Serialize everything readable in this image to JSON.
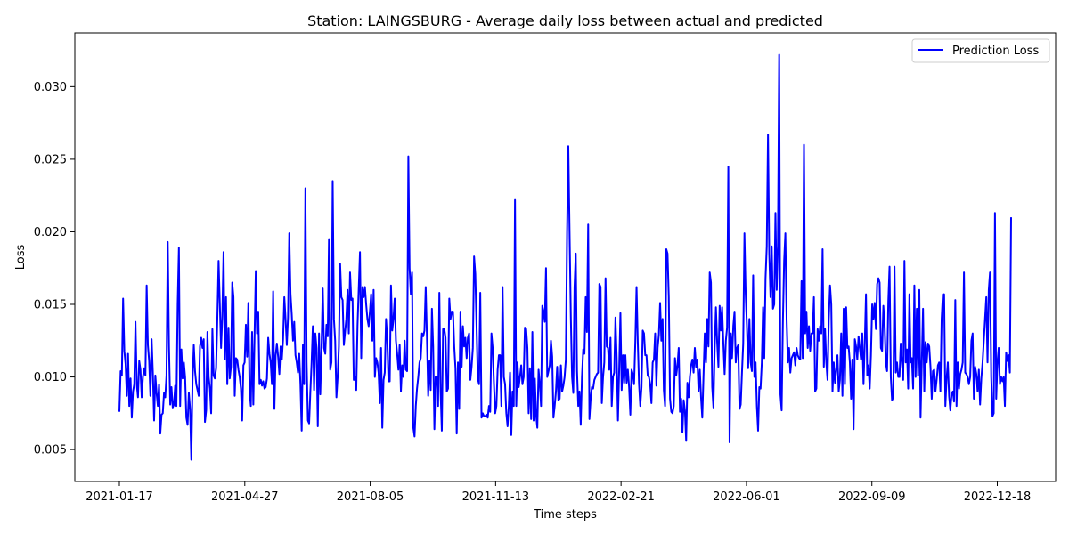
{
  "chart_data": {
    "type": "line",
    "title": "Station: LAINGSBURG - Average daily loss between actual and predicted",
    "xlabel": "Time steps",
    "ylabel": "Loss",
    "x_start": "2021-01-17",
    "x_end": "2022-12-29",
    "x_tick_labels": [
      "2021-01-17",
      "2021-04-27",
      "2021-08-05",
      "2021-11-13",
      "2022-02-21",
      "2022-06-01",
      "2022-09-09",
      "2022-12-18"
    ],
    "ylim": [
      0.0028,
      0.0337
    ],
    "y_ticks": [
      "0.005",
      "0.010",
      "0.015",
      "0.020",
      "0.025",
      "0.030"
    ],
    "legend": {
      "position": "top-right",
      "entries": [
        "Prediction Loss"
      ]
    },
    "series": [
      {
        "name": "Prediction Loss",
        "color": "#0000ff",
        "values": [
          0.0076,
          0.0104,
          0.0101,
          0.0154,
          0.0118,
          0.0109,
          0.0087,
          0.0116,
          0.008,
          0.0099,
          0.0072,
          0.009,
          0.0095,
          0.0138,
          0.0095,
          0.0086,
          0.0111,
          0.0105,
          0.0086,
          0.01,
          0.0106,
          0.0101,
          0.0163,
          0.0122,
          0.0111,
          0.0087,
          0.0126,
          0.0103,
          0.007,
          0.0101,
          0.0089,
          0.008,
          0.0095,
          0.0061,
          0.0074,
          0.0075,
          0.0089,
          0.0086,
          0.0101,
          0.0193,
          0.0121,
          0.0081,
          0.0093,
          0.0079,
          0.0081,
          0.0094,
          0.008,
          0.015,
          0.0189,
          0.008,
          0.0119,
          0.0099,
          0.011,
          0.01,
          0.0072,
          0.0067,
          0.0089,
          0.0078,
          0.0043,
          0.0098,
          0.0122,
          0.0104,
          0.0095,
          0.0091,
          0.0087,
          0.0121,
          0.0127,
          0.012,
          0.0126,
          0.0069,
          0.0077,
          0.0131,
          0.01,
          0.0092,
          0.0075,
          0.0133,
          0.0101,
          0.0099,
          0.0106,
          0.014,
          0.018,
          0.015,
          0.012,
          0.0142,
          0.0186,
          0.0112,
          0.0155,
          0.0095,
          0.0134,
          0.0099,
          0.0107,
          0.0165,
          0.0155,
          0.0087,
          0.0113,
          0.0112,
          0.0105,
          0.01,
          0.0092,
          0.007,
          0.0108,
          0.011,
          0.0136,
          0.0114,
          0.0151,
          0.009,
          0.008,
          0.0131,
          0.0081,
          0.0128,
          0.0173,
          0.013,
          0.0145,
          0.0095,
          0.0098,
          0.0094,
          0.0097,
          0.0092,
          0.0093,
          0.0099,
          0.0127,
          0.0116,
          0.011,
          0.0095,
          0.0159,
          0.0078,
          0.0115,
          0.0123,
          0.0114,
          0.0102,
          0.0121,
          0.0112,
          0.0126,
          0.0155,
          0.014,
          0.0122,
          0.0141,
          0.0199,
          0.0157,
          0.0143,
          0.0125,
          0.0138,
          0.0115,
          0.011,
          0.0103,
          0.0116,
          0.0095,
          0.0063,
          0.0122,
          0.0095,
          0.023,
          0.011,
          0.007,
          0.0068,
          0.009,
          0.011,
          0.0135,
          0.0091,
          0.013,
          0.012,
          0.0066,
          0.013,
          0.0088,
          0.012,
          0.0161,
          0.012,
          0.0116,
          0.0136,
          0.0128,
          0.0195,
          0.0105,
          0.011,
          0.0235,
          0.014,
          0.0125,
          0.0086,
          0.01,
          0.0121,
          0.0178,
          0.0155,
          0.0153,
          0.0122,
          0.0131,
          0.014,
          0.016,
          0.013,
          0.0172,
          0.0153,
          0.0154,
          0.0098,
          0.01,
          0.0091,
          0.0135,
          0.0161,
          0.0186,
          0.0113,
          0.0162,
          0.0155,
          0.0162,
          0.015,
          0.014,
          0.0135,
          0.0145,
          0.0157,
          0.0125,
          0.016,
          0.01,
          0.0113,
          0.011,
          0.0103,
          0.0082,
          0.012,
          0.0065,
          0.0098,
          0.0103,
          0.014,
          0.0127,
          0.0097,
          0.0097,
          0.0163,
          0.0132,
          0.014,
          0.0154,
          0.0125,
          0.0116,
          0.0105,
          0.0122,
          0.009,
          0.0108,
          0.01,
          0.0125,
          0.0105,
          0.0104,
          0.0252,
          0.0175,
          0.0157,
          0.0172,
          0.0065,
          0.0059,
          0.008,
          0.0092,
          0.01,
          0.011,
          0.0113,
          0.013,
          0.0128,
          0.0132,
          0.0162,
          0.0127,
          0.0087,
          0.0111,
          0.0091,
          0.0147,
          0.0121,
          0.0064,
          0.01,
          0.01,
          0.008,
          0.0158,
          0.009,
          0.0063,
          0.0133,
          0.0133,
          0.0127,
          0.009,
          0.0092,
          0.0154,
          0.014,
          0.0145,
          0.0145,
          0.0121,
          0.0106,
          0.0061,
          0.011,
          0.0078,
          0.0145,
          0.0107,
          0.0135,
          0.0121,
          0.0127,
          0.0113,
          0.0127,
          0.013,
          0.0098,
          0.0107,
          0.012,
          0.0183,
          0.0171,
          0.0135,
          0.0099,
          0.0095,
          0.0158,
          0.0072,
          0.0075,
          0.0073,
          0.0073,
          0.0074,
          0.0072,
          0.008,
          0.0076,
          0.013,
          0.012,
          0.0096,
          0.0075,
          0.008,
          0.0105,
          0.0115,
          0.0115,
          0.008,
          0.0162,
          0.01,
          0.0095,
          0.0075,
          0.0066,
          0.008,
          0.0103,
          0.006,
          0.009,
          0.008,
          0.0222,
          0.008,
          0.011,
          0.0093,
          0.01,
          0.0108,
          0.0095,
          0.01,
          0.0134,
          0.0133,
          0.012,
          0.0075,
          0.0106,
          0.0071,
          0.0131,
          0.007,
          0.0099,
          0.0074,
          0.0065,
          0.0105,
          0.0095,
          0.008,
          0.0149,
          0.0145,
          0.0138,
          0.0175,
          0.01,
          0.0104,
          0.0108,
          0.0125,
          0.0114,
          0.0072,
          0.008,
          0.009,
          0.0107,
          0.0084,
          0.0085,
          0.0108,
          0.009,
          0.0094,
          0.01,
          0.0112,
          0.02,
          0.0259,
          0.02,
          0.0142,
          0.01,
          0.0089,
          0.0162,
          0.0185,
          0.0104,
          0.008,
          0.009,
          0.0067,
          0.01,
          0.0119,
          0.0116,
          0.0155,
          0.0131,
          0.0205,
          0.0071,
          0.0085,
          0.0093,
          0.0092,
          0.0098,
          0.01,
          0.0102,
          0.0103,
          0.0164,
          0.0162,
          0.0082,
          0.01,
          0.011,
          0.0168,
          0.0121,
          0.012,
          0.0105,
          0.0127,
          0.008,
          0.01,
          0.0103,
          0.0141,
          0.0113,
          0.007,
          0.0105,
          0.0144,
          0.0091,
          0.0115,
          0.0096,
          0.0115,
          0.0096,
          0.0105,
          0.0093,
          0.0074,
          0.0105,
          0.0102,
          0.0095,
          0.0124,
          0.0162,
          0.0124,
          0.0095,
          0.008,
          0.0093,
          0.0132,
          0.013,
          0.0115,
          0.0115,
          0.0101,
          0.01,
          0.0095,
          0.0082,
          0.011,
          0.0112,
          0.013,
          0.0094,
          0.012,
          0.0129,
          0.0151,
          0.0125,
          0.014,
          0.0091,
          0.008,
          0.0188,
          0.0185,
          0.0155,
          0.0085,
          0.0076,
          0.0075,
          0.008,
          0.0113,
          0.0101,
          0.0108,
          0.012,
          0.0076,
          0.0085,
          0.0062,
          0.0084,
          0.0077,
          0.0056,
          0.0096,
          0.0086,
          0.01,
          0.0108,
          0.0112,
          0.0103,
          0.012,
          0.0107,
          0.0112,
          0.009,
          0.0105,
          0.0086,
          0.0072,
          0.0101,
          0.013,
          0.011,
          0.014,
          0.0121,
          0.0172,
          0.0165,
          0.0093,
          0.0079,
          0.012,
          0.0148,
          0.0124,
          0.0107,
          0.0149,
          0.0132,
          0.0148,
          0.0123,
          0.0102,
          0.0125,
          0.0134,
          0.0245,
          0.0055,
          0.013,
          0.0113,
          0.0135,
          0.0145,
          0.011,
          0.012,
          0.0122,
          0.0078,
          0.0081,
          0.0103,
          0.0123,
          0.0199,
          0.0157,
          0.0135,
          0.0106,
          0.014,
          0.011,
          0.0104,
          0.017,
          0.01,
          0.011,
          0.008,
          0.0063,
          0.0093,
          0.0092,
          0.011,
          0.0148,
          0.0113,
          0.0168,
          0.019,
          0.0267,
          0.0185,
          0.0155,
          0.019,
          0.0147,
          0.015,
          0.0213,
          0.016,
          0.019,
          0.0322,
          0.0088,
          0.0077,
          0.0138,
          0.018,
          0.0199,
          0.014,
          0.011,
          0.012,
          0.0103,
          0.0113,
          0.0115,
          0.0117,
          0.0108,
          0.012,
          0.0115,
          0.0113,
          0.0112,
          0.0166,
          0.0113,
          0.026,
          0.013,
          0.0145,
          0.012,
          0.0135,
          0.0118,
          0.013,
          0.013,
          0.0155,
          0.009,
          0.0092,
          0.0133,
          0.0125,
          0.0135,
          0.013,
          0.0188,
          0.0107,
          0.0133,
          0.011,
          0.0098,
          0.014,
          0.0163,
          0.015,
          0.009,
          0.011,
          0.0096,
          0.0105,
          0.0115,
          0.009,
          0.0098,
          0.013,
          0.0087,
          0.0147,
          0.0095,
          0.0148,
          0.012,
          0.0121,
          0.011,
          0.0085,
          0.0112,
          0.0064,
          0.0126,
          0.0121,
          0.0112,
          0.0128,
          0.012,
          0.0112,
          0.013,
          0.0095,
          0.0123,
          0.0157,
          0.0101,
          0.0108,
          0.0092,
          0.0115,
          0.015,
          0.014,
          0.0151,
          0.0133,
          0.0164,
          0.0168,
          0.0165,
          0.012,
          0.0118,
          0.0149,
          0.0136,
          0.011,
          0.0104,
          0.0152,
          0.0176,
          0.01,
          0.0084,
          0.0086,
          0.0176,
          0.0103,
          0.011,
          0.01,
          0.01,
          0.0123,
          0.011,
          0.0098,
          0.018,
          0.011,
          0.0119,
          0.0092,
          0.0157,
          0.011,
          0.0113,
          0.0092,
          0.0163,
          0.01,
          0.0147,
          0.0101,
          0.016,
          0.0072,
          0.011,
          0.0147,
          0.009,
          0.0124,
          0.011,
          0.0123,
          0.0121,
          0.0107,
          0.0085,
          0.0104,
          0.0105,
          0.009,
          0.0098,
          0.0108,
          0.011,
          0.009,
          0.014,
          0.0157,
          0.0157,
          0.008,
          0.0099,
          0.011,
          0.0087,
          0.0077,
          0.0088,
          0.009,
          0.0083,
          0.0153,
          0.008,
          0.011,
          0.0092,
          0.0102,
          0.0105,
          0.011,
          0.0172,
          0.0103,
          0.0102,
          0.01,
          0.0095,
          0.01,
          0.0125,
          0.013,
          0.0085,
          0.0107,
          0.0102,
          0.009,
          0.0105,
          0.0081,
          0.0099,
          0.011,
          0.0125,
          0.014,
          0.0155,
          0.011,
          0.016,
          0.0172,
          0.01,
          0.0073,
          0.0075,
          0.0213,
          0.0085,
          0.011,
          0.012,
          0.0095,
          0.01,
          0.0097,
          0.01,
          0.008,
          0.0117,
          0.0111,
          0.0115,
          0.0103,
          0.021
        ]
      }
    ]
  }
}
